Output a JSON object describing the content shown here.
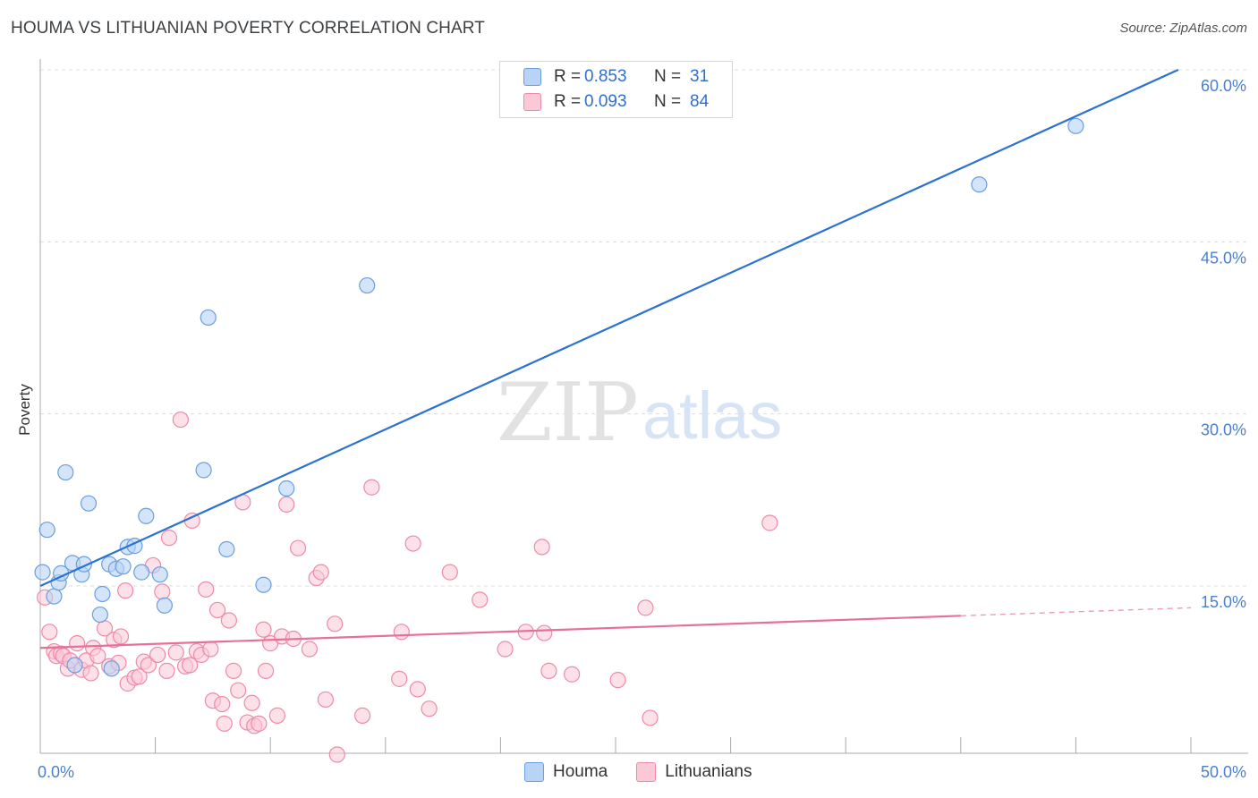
{
  "title": "HOUMA VS LITHUANIAN POVERTY CORRELATION CHART",
  "source": "Source: ZipAtlas.com",
  "watermark": {
    "zip": "ZIP",
    "atlas": "atlas"
  },
  "legend": {
    "rows": [
      {
        "r_label": "R =",
        "r_value": "0.853",
        "n_label": "N =",
        "n_value": "31"
      },
      {
        "r_label": "R =",
        "r_value": "0.093",
        "n_label": "N =",
        "n_value": "84"
      }
    ],
    "bottom": [
      "Houma",
      "Lithuanians"
    ]
  },
  "colors": {
    "houma_fill": "#b8d3f5",
    "houma_stroke": "#6b9ee0",
    "houma_line": "#2b72d1",
    "lith_fill": "#fbc8d6",
    "lith_stroke": "#ee8aa9",
    "lith_line": "#e5709a",
    "grid": "#dcdcdc",
    "tick_text": "#4a7fd0"
  },
  "chart_data": {
    "type": "scatter",
    "title": "HOUMA VS LITHUANIAN POVERTY CORRELATION CHART",
    "xlabel": "",
    "ylabel": "Poverty",
    "xlim": [
      0,
      50
    ],
    "ylim": [
      0,
      60
    ],
    "x_tick_labels": [
      "0.0%",
      "50.0%"
    ],
    "y_ticks": [
      15,
      30,
      45,
      60
    ],
    "y_tick_labels": [
      "15.0%",
      "30.0%",
      "45.0%",
      "60.0%"
    ],
    "series": [
      {
        "name": "Houma",
        "r": 0.853,
        "n": 31,
        "trend": {
          "x0": 0,
          "y0": 15.0,
          "x1": 50,
          "y1": 60.5,
          "dashed_from": null
        },
        "points": [
          [
            0.1,
            16.2
          ],
          [
            0.3,
            19.9
          ],
          [
            0.6,
            14.1
          ],
          [
            0.8,
            15.3
          ],
          [
            0.9,
            16.1
          ],
          [
            1.1,
            24.9
          ],
          [
            1.4,
            17.0
          ],
          [
            1.5,
            8.1
          ],
          [
            1.8,
            16.0
          ],
          [
            1.9,
            16.9
          ],
          [
            2.1,
            22.2
          ],
          [
            2.6,
            12.5
          ],
          [
            2.7,
            14.3
          ],
          [
            3.0,
            16.9
          ],
          [
            3.1,
            7.8
          ],
          [
            3.3,
            16.5
          ],
          [
            3.6,
            16.7
          ],
          [
            3.8,
            18.4
          ],
          [
            4.1,
            18.5
          ],
          [
            4.4,
            16.2
          ],
          [
            4.6,
            21.1
          ],
          [
            5.2,
            16.0
          ],
          [
            5.4,
            13.3
          ],
          [
            7.1,
            25.1
          ],
          [
            7.3,
            38.4
          ],
          [
            8.1,
            18.2
          ],
          [
            9.7,
            15.1
          ],
          [
            10.7,
            23.5
          ],
          [
            14.2,
            41.2
          ],
          [
            40.8,
            50.0
          ],
          [
            45.0,
            55.1
          ]
        ]
      },
      {
        "name": "Lithuanians",
        "r": 0.093,
        "n": 84,
        "trend": {
          "x0": 0,
          "y0": 9.6,
          "x1": 50,
          "y1": 13.1,
          "dashed_from": 40
        },
        "points": [
          [
            0.2,
            14.0
          ],
          [
            0.4,
            11.0
          ],
          [
            0.6,
            9.3
          ],
          [
            0.7,
            8.9
          ],
          [
            0.9,
            9.1
          ],
          [
            1.0,
            8.9
          ],
          [
            1.2,
            7.8
          ],
          [
            1.3,
            8.5
          ],
          [
            1.6,
            10.0
          ],
          [
            1.8,
            7.7
          ],
          [
            2.0,
            8.5
          ],
          [
            2.2,
            7.4
          ],
          [
            2.3,
            9.6
          ],
          [
            2.5,
            8.9
          ],
          [
            2.8,
            11.3
          ],
          [
            3.0,
            8.0
          ],
          [
            3.2,
            10.3
          ],
          [
            3.4,
            8.3
          ],
          [
            3.5,
            10.6
          ],
          [
            3.7,
            14.6
          ],
          [
            3.8,
            6.5
          ],
          [
            4.1,
            7.0
          ],
          [
            4.3,
            7.1
          ],
          [
            4.5,
            8.4
          ],
          [
            4.7,
            8.1
          ],
          [
            4.9,
            16.8
          ],
          [
            5.1,
            9.0
          ],
          [
            5.3,
            14.5
          ],
          [
            5.5,
            7.6
          ],
          [
            5.6,
            19.2
          ],
          [
            5.9,
            9.2
          ],
          [
            6.1,
            29.5
          ],
          [
            6.3,
            8.0
          ],
          [
            6.5,
            8.1
          ],
          [
            6.6,
            20.7
          ],
          [
            6.8,
            9.3
          ],
          [
            7.0,
            9.0
          ],
          [
            7.2,
            14.7
          ],
          [
            7.4,
            9.5
          ],
          [
            7.5,
            5.0
          ],
          [
            7.7,
            12.9
          ],
          [
            7.9,
            4.7
          ],
          [
            8.0,
            3.0
          ],
          [
            8.2,
            12.0
          ],
          [
            8.4,
            7.6
          ],
          [
            8.6,
            5.9
          ],
          [
            8.8,
            22.3
          ],
          [
            9.0,
            3.1
          ],
          [
            9.2,
            4.8
          ],
          [
            9.3,
            2.8
          ],
          [
            9.5,
            3.0
          ],
          [
            9.7,
            11.2
          ],
          [
            9.8,
            7.6
          ],
          [
            10.0,
            10.0
          ],
          [
            10.3,
            3.7
          ],
          [
            10.5,
            10.6
          ],
          [
            10.7,
            22.1
          ],
          [
            11.0,
            10.4
          ],
          [
            11.2,
            18.3
          ],
          [
            11.7,
            9.5
          ],
          [
            12.0,
            15.7
          ],
          [
            12.2,
            16.2
          ],
          [
            12.4,
            5.1
          ],
          [
            12.8,
            11.7
          ],
          [
            12.9,
            0.3
          ],
          [
            14.0,
            3.7
          ],
          [
            14.4,
            23.6
          ],
          [
            15.6,
            6.9
          ],
          [
            15.7,
            11.0
          ],
          [
            16.2,
            18.7
          ],
          [
            16.4,
            6.0
          ],
          [
            16.9,
            4.3
          ],
          [
            17.8,
            16.2
          ],
          [
            19.1,
            13.8
          ],
          [
            20.2,
            9.5
          ],
          [
            21.1,
            11.0
          ],
          [
            21.8,
            18.4
          ],
          [
            21.9,
            10.9
          ],
          [
            22.1,
            7.6
          ],
          [
            23.1,
            7.3
          ],
          [
            25.1,
            6.8
          ],
          [
            26.3,
            13.1
          ],
          [
            26.5,
            3.5
          ],
          [
            31.7,
            20.5
          ]
        ]
      }
    ]
  }
}
